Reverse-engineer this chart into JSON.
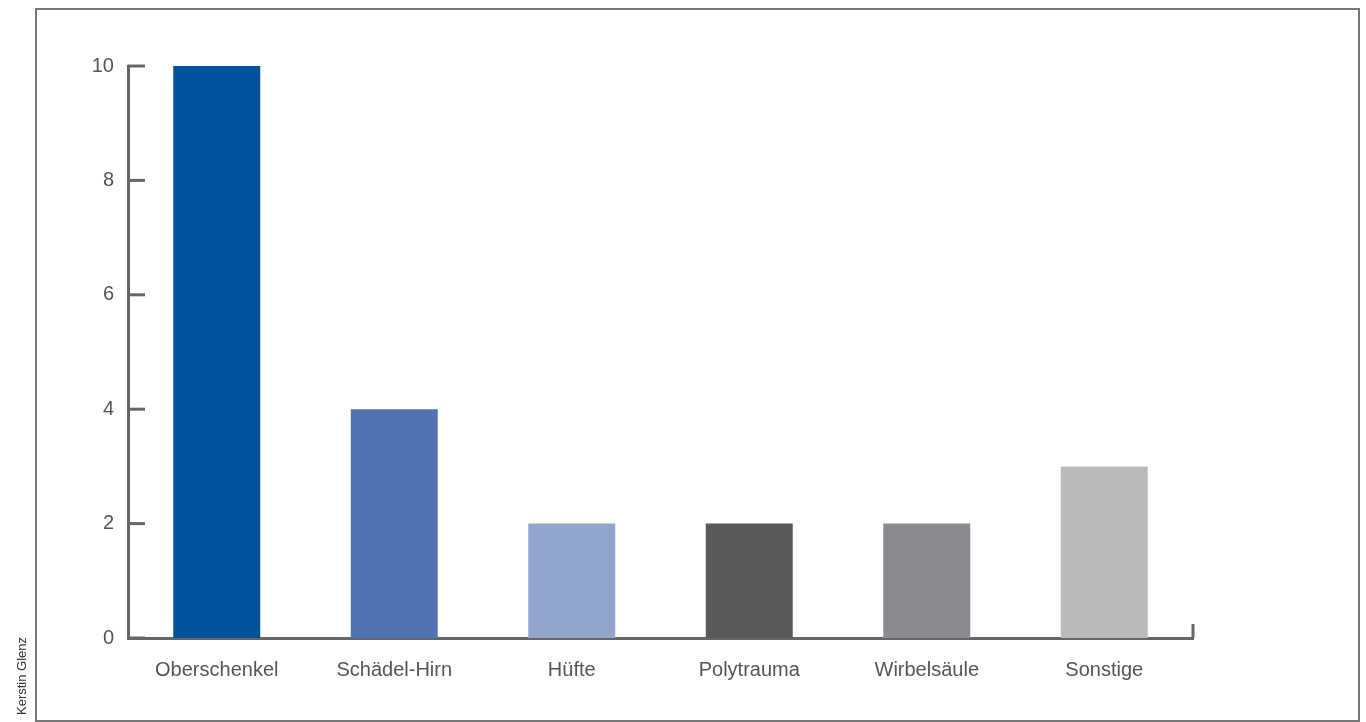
{
  "chart_data": {
    "type": "bar",
    "categories": [
      "Oberschenkel",
      "Schädel-Hirn",
      "Hüfte",
      "Polytrauma",
      "Wirbelsäule",
      "Sonstige"
    ],
    "values": [
      10,
      4,
      2,
      2,
      2,
      3
    ],
    "colors": [
      "#00529b",
      "#5273b3",
      "#93a5cf",
      "#58595b",
      "#8a8b8f",
      "#b9babc"
    ],
    "ylim": [
      0,
      10
    ],
    "yticks": [
      0,
      2,
      4,
      6,
      8,
      10
    ],
    "grid": false,
    "legend": false,
    "annotations": [
      "Kerstin Glenz"
    ]
  }
}
